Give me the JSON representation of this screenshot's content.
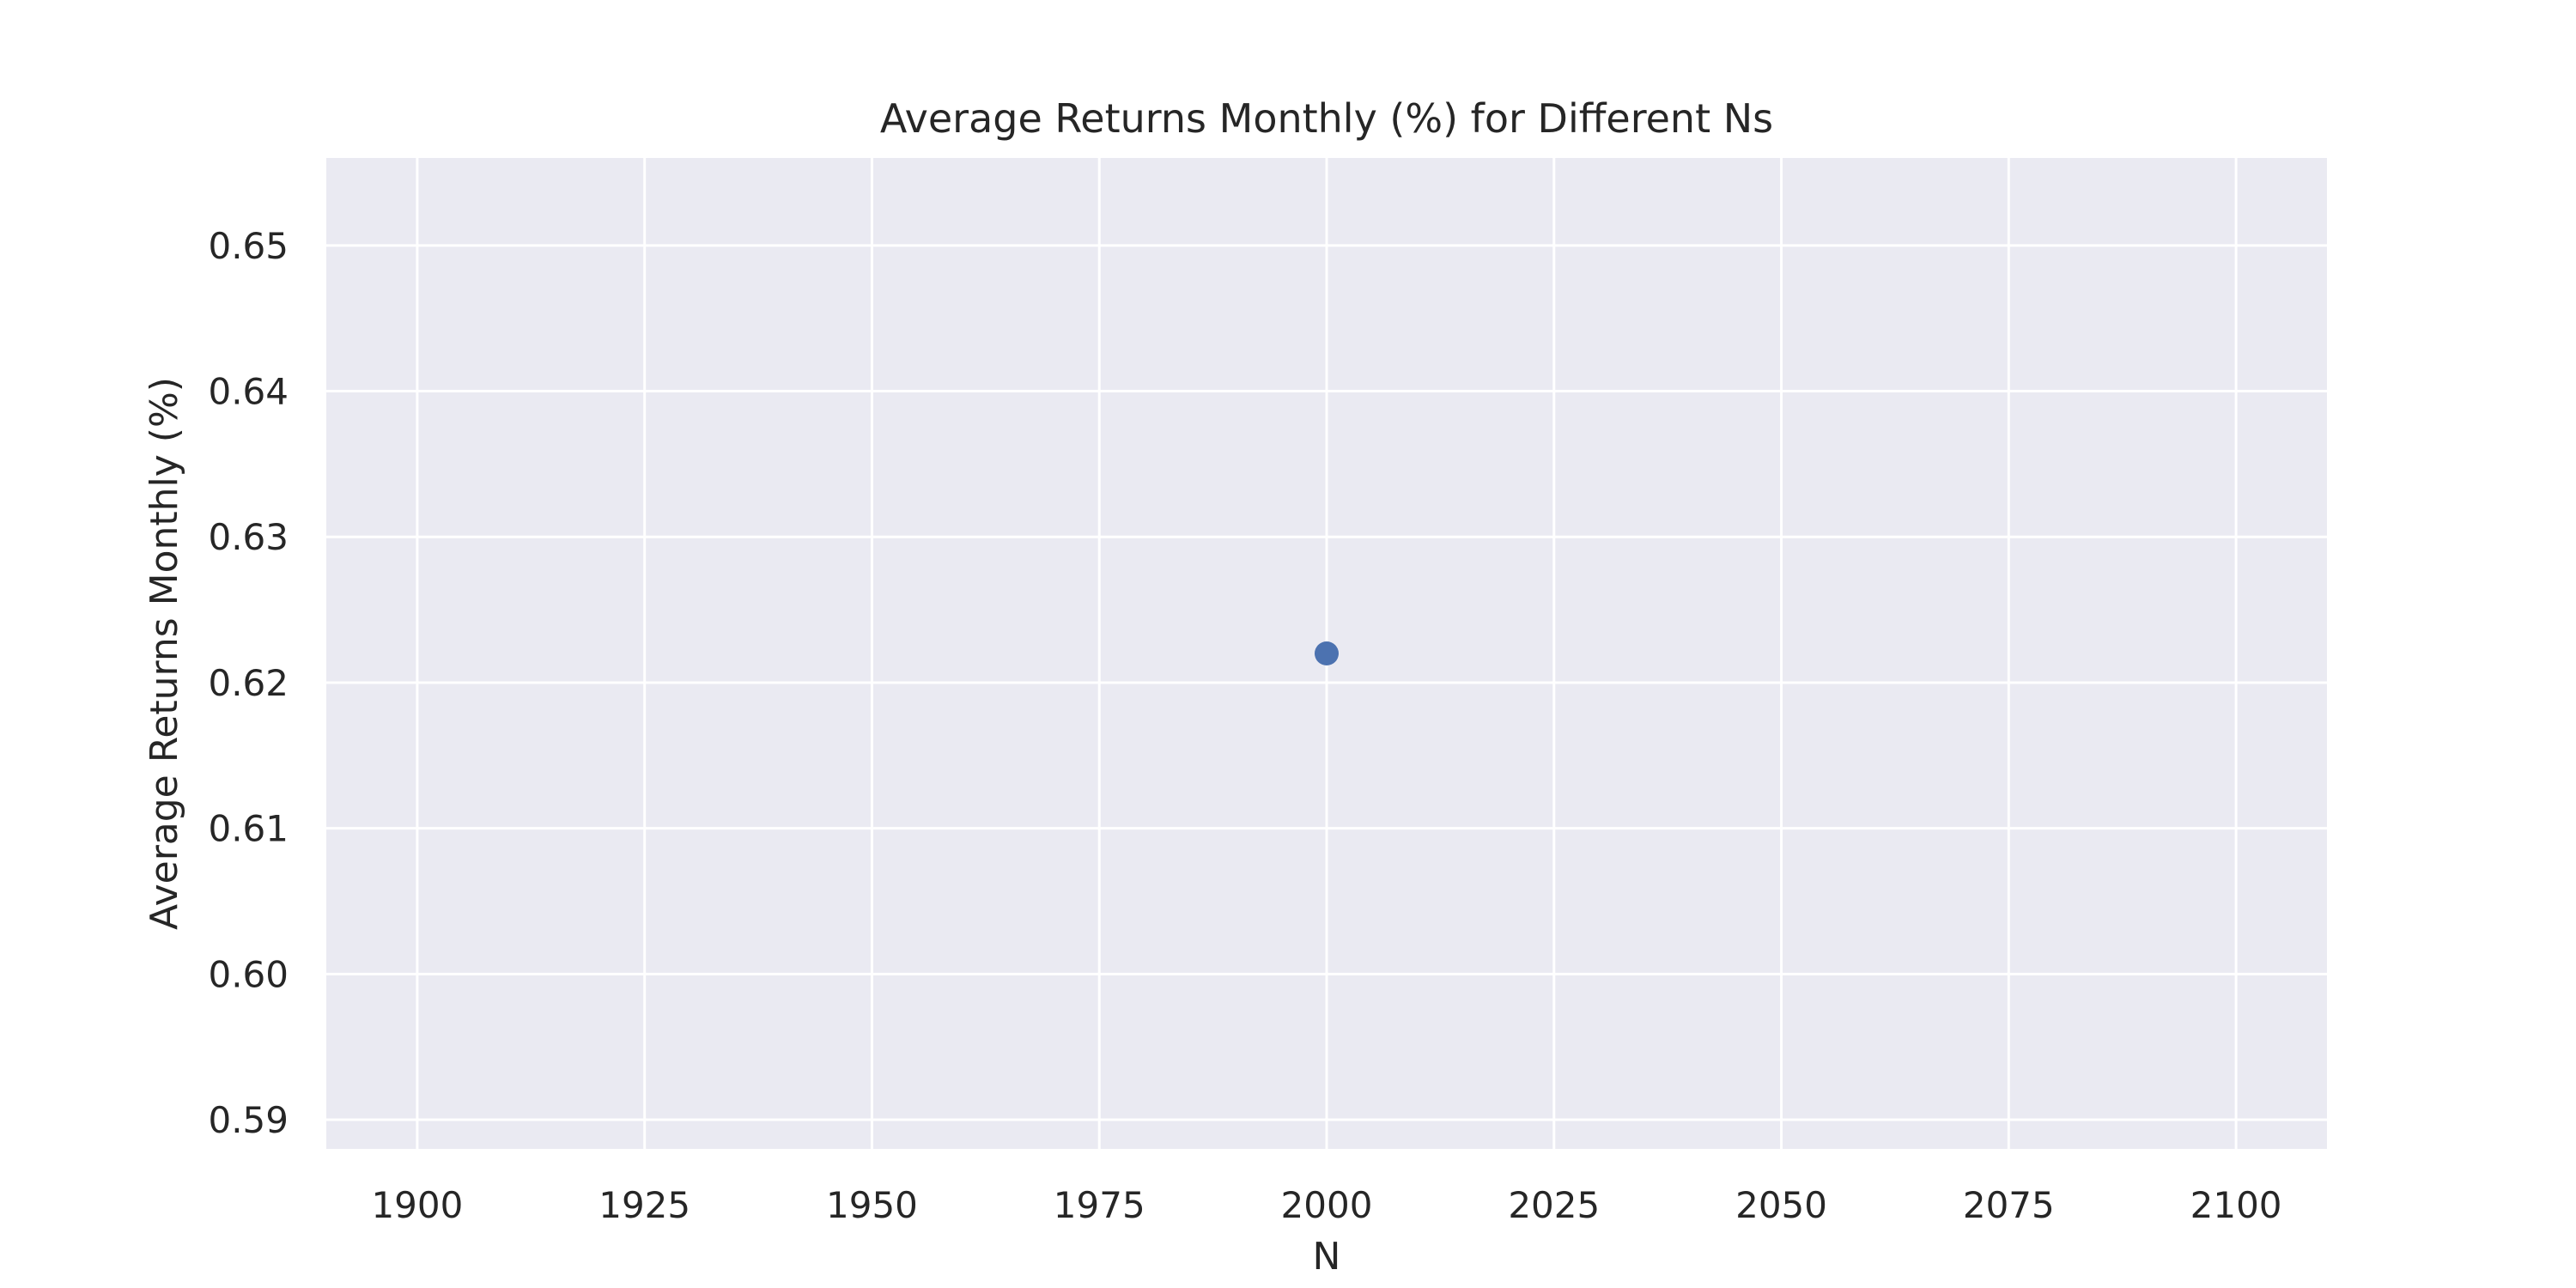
{
  "chart_data": {
    "type": "scatter",
    "title": "Average Returns Monthly (%) for Different Ns",
    "xlabel": "N",
    "ylabel": "Average Returns Monthly (%)",
    "xlim": [
      1890,
      2110
    ],
    "ylim": [
      0.588,
      0.656
    ],
    "xticks": [
      1900,
      1925,
      1950,
      1975,
      2000,
      2025,
      2050,
      2075,
      2100
    ],
    "yticks": [
      0.59,
      0.6,
      0.61,
      0.62,
      0.63,
      0.64,
      0.65
    ],
    "ytick_labels": [
      "0.59",
      "0.60",
      "0.61",
      "0.62",
      "0.63",
      "0.64",
      "0.65"
    ],
    "grid": true,
    "series": [
      {
        "color": "#4c72b0",
        "points": [
          {
            "x": 2000,
            "y": 0.622
          }
        ]
      }
    ]
  }
}
